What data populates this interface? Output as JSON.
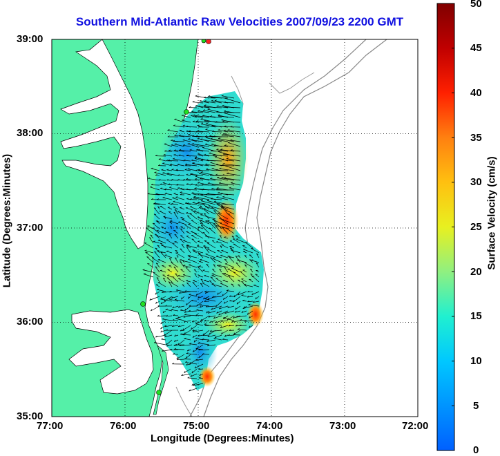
{
  "title": "Southern Mid-Atlantic Raw Velocities 2007/09/23 2200 GMT",
  "xlabel": "Longitude (Degrees:Minutes)",
  "ylabel": "Latitude (Degrees:Minutes)",
  "colorbar_label": "Surface Velocity (cm/s)",
  "x_ticks": [
    "77:00",
    "76:00",
    "75:00",
    "74:00",
    "73:00",
    "72:00"
  ],
  "y_ticks": [
    "39:00",
    "38:00",
    "37:00",
    "36:00",
    "35:00"
  ],
  "colorbar_ticks": [
    "50",
    "45",
    "40",
    "35",
    "30",
    "25",
    "20",
    "15",
    "10",
    "5",
    "0"
  ],
  "colors": {
    "land": "#55f0a8",
    "title": "#1010e0",
    "colormap_low": "#0060ff",
    "colormap_mid": "#e8f020",
    "colormap_high": "#800000"
  },
  "chart_data": {
    "type": "heatmap",
    "title": "Southern Mid-Atlantic Raw Velocities 2007/09/23 2200 GMT",
    "xlabel": "Longitude (Degrees:Minutes)",
    "ylabel": "Latitude (Degrees:Minutes)",
    "xlim": [
      "77:00",
      "72:00"
    ],
    "ylim": [
      "35:00",
      "39:00"
    ],
    "color_range": [
      0,
      50
    ],
    "color_units": "cm/s",
    "grid": true,
    "grid_style": "dotted",
    "vectors": true
  }
}
